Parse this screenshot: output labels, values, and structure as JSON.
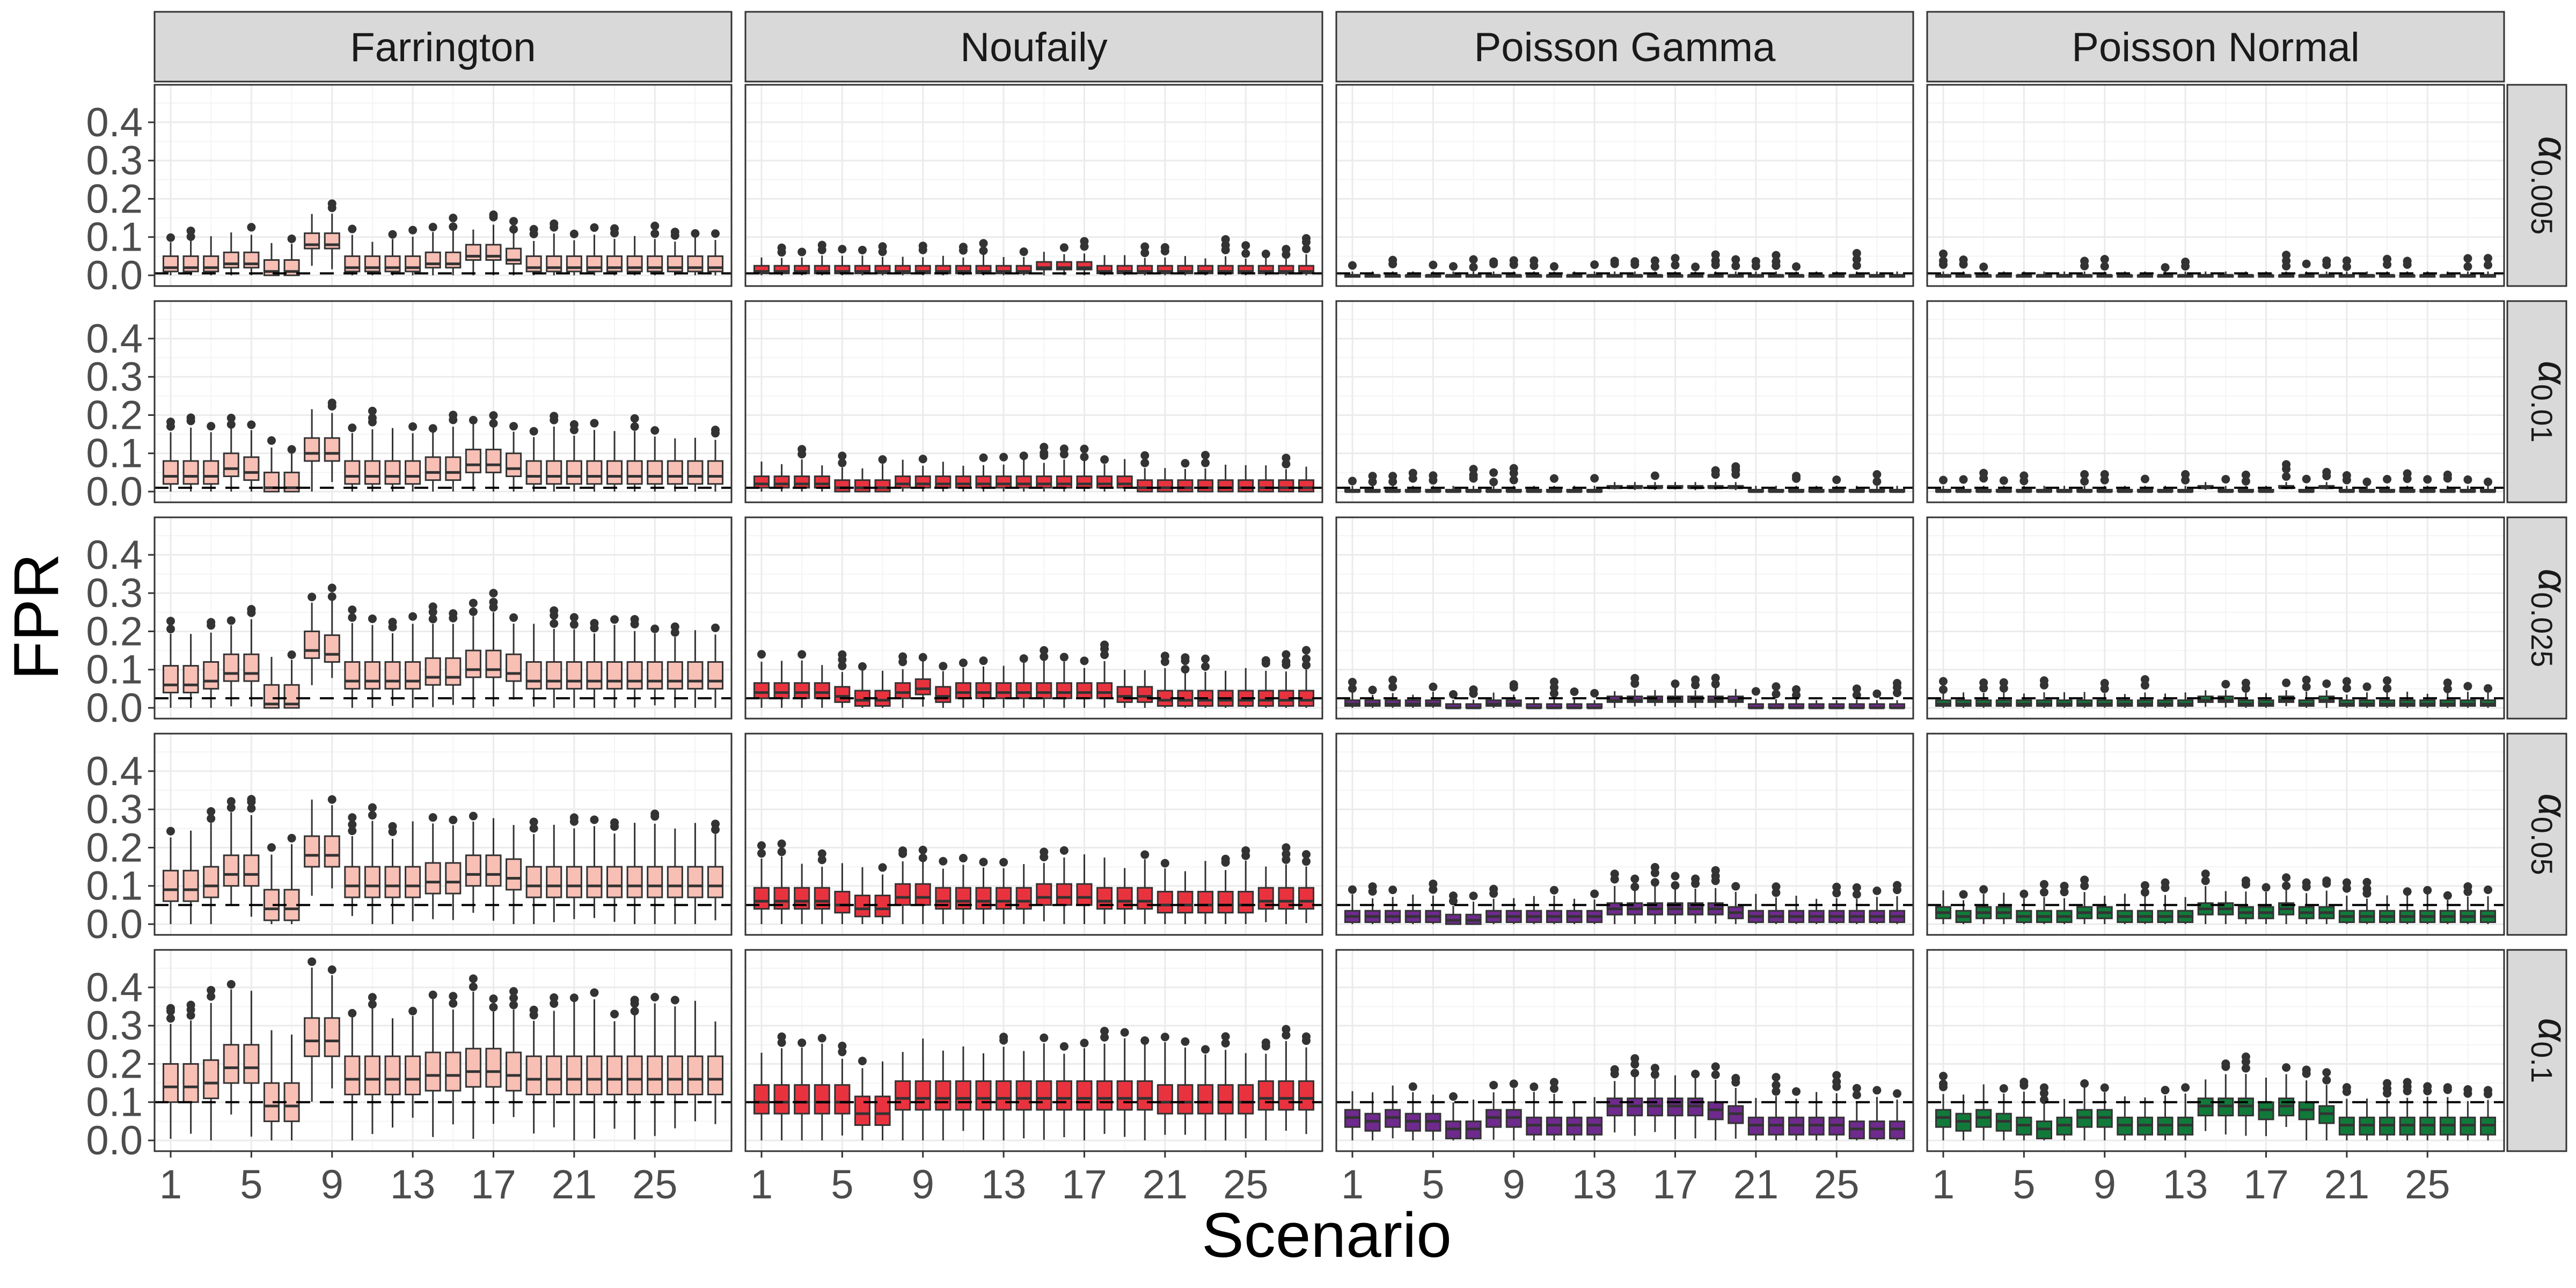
{
  "chart_data": {
    "type": "boxplot",
    "facet_columns": [
      "Farrington",
      "Noufaily",
      "Poisson Gamma",
      "Poisson Normal"
    ],
    "facet_row_symbol": "α",
    "facet_rows": [
      {
        "subscript": "0.005",
        "alpha": 0.005
      },
      {
        "subscript": "0.01",
        "alpha": 0.01
      },
      {
        "subscript": "0.025",
        "alpha": 0.025
      },
      {
        "subscript": "0.05",
        "alpha": 0.05
      },
      {
        "subscript": "0.1",
        "alpha": 0.1
      }
    ],
    "xlabel": "Scenario",
    "ylabel": "FPR",
    "x_range": [
      1,
      28
    ],
    "x_ticks": [
      "1",
      "5",
      "9",
      "13",
      "17",
      "21",
      "25"
    ],
    "y_ticks": [
      "0.0",
      "0.1",
      "0.2",
      "0.3",
      "0.4"
    ],
    "ylim": [
      0,
      0.47
    ],
    "reference_line": "dashed line at the nominal α level",
    "colors": {
      "Farrington": "#f8bfb5",
      "Noufaily": "#e8333f",
      "Poisson Gamma": "#6e2a8c",
      "Poisson Normal": "#117a3a"
    },
    "medians": {
      "Farrington": [
        [
          0.02,
          0.02,
          0.02,
          0.03,
          0.03,
          0.01,
          0.01,
          0.08,
          0.08,
          0.02,
          0.02,
          0.02,
          0.02,
          0.03,
          0.03,
          0.05,
          0.05,
          0.04,
          0.02,
          0.02,
          0.02,
          0.02,
          0.02,
          0.02,
          0.02,
          0.02,
          0.02,
          0.02
        ],
        [
          0.04,
          0.04,
          0.04,
          0.06,
          0.05,
          0.01,
          0.01,
          0.1,
          0.1,
          0.04,
          0.04,
          0.04,
          0.04,
          0.05,
          0.05,
          0.07,
          0.07,
          0.06,
          0.04,
          0.04,
          0.04,
          0.04,
          0.04,
          0.04,
          0.04,
          0.04,
          0.04,
          0.04
        ],
        [
          0.06,
          0.06,
          0.07,
          0.09,
          0.09,
          0.01,
          0.01,
          0.15,
          0.14,
          0.07,
          0.07,
          0.07,
          0.07,
          0.08,
          0.08,
          0.1,
          0.1,
          0.09,
          0.07,
          0.07,
          0.07,
          0.07,
          0.07,
          0.07,
          0.07,
          0.07,
          0.07,
          0.07
        ],
        [
          0.09,
          0.09,
          0.1,
          0.13,
          0.13,
          0.04,
          0.04,
          0.18,
          0.18,
          0.1,
          0.1,
          0.1,
          0.1,
          0.11,
          0.11,
          0.13,
          0.13,
          0.12,
          0.1,
          0.1,
          0.1,
          0.1,
          0.1,
          0.1,
          0.1,
          0.1,
          0.1,
          0.1
        ],
        [
          0.14,
          0.14,
          0.15,
          0.19,
          0.19,
          0.09,
          0.09,
          0.26,
          0.26,
          0.16,
          0.16,
          0.16,
          0.16,
          0.17,
          0.17,
          0.18,
          0.18,
          0.17,
          0.16,
          0.16,
          0.16,
          0.16,
          0.16,
          0.16,
          0.16,
          0.16,
          0.16,
          0.16
        ]
      ],
      "Noufaily": [
        [
          0.01,
          0.01,
          0.01,
          0.01,
          0.01,
          0.01,
          0.01,
          0.01,
          0.01,
          0.01,
          0.01,
          0.01,
          0.01,
          0.01,
          0.02,
          0.02,
          0.02,
          0.01,
          0.01,
          0.01,
          0.01,
          0.01,
          0.01,
          0.01,
          0.01,
          0.01,
          0.01,
          0.01
        ],
        [
          0.02,
          0.02,
          0.02,
          0.02,
          0.01,
          0.01,
          0.01,
          0.02,
          0.02,
          0.02,
          0.02,
          0.02,
          0.02,
          0.02,
          0.02,
          0.02,
          0.02,
          0.02,
          0.02,
          0.01,
          0.01,
          0.01,
          0.01,
          0.01,
          0.01,
          0.01,
          0.01,
          0.01
        ],
        [
          0.04,
          0.04,
          0.04,
          0.04,
          0.03,
          0.02,
          0.02,
          0.04,
          0.05,
          0.03,
          0.04,
          0.04,
          0.04,
          0.04,
          0.04,
          0.04,
          0.04,
          0.04,
          0.03,
          0.03,
          0.02,
          0.02,
          0.02,
          0.02,
          0.02,
          0.02,
          0.02,
          0.02
        ],
        [
          0.06,
          0.06,
          0.06,
          0.06,
          0.05,
          0.04,
          0.04,
          0.07,
          0.07,
          0.06,
          0.06,
          0.06,
          0.06,
          0.06,
          0.07,
          0.07,
          0.07,
          0.06,
          0.06,
          0.06,
          0.05,
          0.05,
          0.05,
          0.05,
          0.05,
          0.06,
          0.06,
          0.06
        ],
        [
          0.1,
          0.1,
          0.1,
          0.1,
          0.1,
          0.07,
          0.07,
          0.11,
          0.11,
          0.11,
          0.11,
          0.11,
          0.11,
          0.11,
          0.11,
          0.11,
          0.11,
          0.11,
          0.11,
          0.11,
          0.1,
          0.1,
          0.1,
          0.1,
          0.1,
          0.11,
          0.11,
          0.11
        ]
      ],
      "Poisson Gamma": [
        [
          0.0,
          0.0,
          0.0,
          0.0,
          0.0,
          0.0,
          0.0,
          0.0,
          0.0,
          0.0,
          0.0,
          0.0,
          0.0,
          0.0,
          0.0,
          0.0,
          0.0,
          0.0,
          0.0,
          0.0,
          0.0,
          0.0,
          0.0,
          0.0,
          0.0,
          0.0,
          0.0,
          0.0
        ],
        [
          0.0,
          0.0,
          0.0,
          0.0,
          0.0,
          0.0,
          0.0,
          0.0,
          0.0,
          0.0,
          0.0,
          0.0,
          0.0,
          0.01,
          0.01,
          0.01,
          0.01,
          0.01,
          0.01,
          0.01,
          0.0,
          0.0,
          0.0,
          0.0,
          0.0,
          0.0,
          0.0,
          0.0
        ],
        [
          0.01,
          0.01,
          0.01,
          0.01,
          0.01,
          0.0,
          0.0,
          0.01,
          0.01,
          0.0,
          0.0,
          0.0,
          0.0,
          0.02,
          0.02,
          0.02,
          0.02,
          0.02,
          0.02,
          0.02,
          0.0,
          0.0,
          0.0,
          0.0,
          0.0,
          0.0,
          0.0,
          0.0
        ],
        [
          0.02,
          0.02,
          0.02,
          0.02,
          0.02,
          0.01,
          0.01,
          0.02,
          0.02,
          0.02,
          0.02,
          0.02,
          0.02,
          0.04,
          0.04,
          0.04,
          0.04,
          0.04,
          0.04,
          0.03,
          0.02,
          0.02,
          0.02,
          0.02,
          0.02,
          0.02,
          0.02,
          0.02
        ],
        [
          0.06,
          0.05,
          0.06,
          0.05,
          0.05,
          0.03,
          0.03,
          0.06,
          0.06,
          0.04,
          0.04,
          0.04,
          0.04,
          0.09,
          0.09,
          0.09,
          0.09,
          0.09,
          0.08,
          0.07,
          0.04,
          0.04,
          0.04,
          0.04,
          0.04,
          0.03,
          0.03,
          0.03
        ]
      ],
      "Poisson Normal": [
        [
          0.0,
          0.0,
          0.0,
          0.0,
          0.0,
          0.0,
          0.0,
          0.0,
          0.0,
          0.0,
          0.0,
          0.0,
          0.0,
          0.0,
          0.0,
          0.0,
          0.0,
          0.0,
          0.0,
          0.0,
          0.0,
          0.0,
          0.0,
          0.0,
          0.0,
          0.0,
          0.0,
          0.0
        ],
        [
          0.0,
          0.0,
          0.0,
          0.0,
          0.0,
          0.0,
          0.0,
          0.0,
          0.0,
          0.0,
          0.0,
          0.0,
          0.0,
          0.01,
          0.0,
          0.0,
          0.0,
          0.01,
          0.0,
          0.01,
          0.0,
          0.0,
          0.0,
          0.0,
          0.0,
          0.0,
          0.0,
          0.0
        ],
        [
          0.01,
          0.01,
          0.01,
          0.01,
          0.01,
          0.01,
          0.01,
          0.01,
          0.01,
          0.01,
          0.01,
          0.01,
          0.01,
          0.02,
          0.02,
          0.01,
          0.01,
          0.02,
          0.01,
          0.02,
          0.01,
          0.01,
          0.01,
          0.01,
          0.01,
          0.01,
          0.01,
          0.01
        ],
        [
          0.03,
          0.02,
          0.03,
          0.03,
          0.02,
          0.02,
          0.02,
          0.03,
          0.03,
          0.02,
          0.02,
          0.02,
          0.02,
          0.04,
          0.04,
          0.03,
          0.03,
          0.04,
          0.03,
          0.03,
          0.02,
          0.02,
          0.02,
          0.02,
          0.02,
          0.02,
          0.02,
          0.02
        ],
        [
          0.06,
          0.05,
          0.06,
          0.05,
          0.04,
          0.03,
          0.04,
          0.06,
          0.06,
          0.04,
          0.04,
          0.04,
          0.04,
          0.09,
          0.09,
          0.09,
          0.08,
          0.09,
          0.08,
          0.07,
          0.04,
          0.04,
          0.04,
          0.04,
          0.04,
          0.04,
          0.04,
          0.04
        ]
      ]
    },
    "box_halfwidths": {
      "Farrington": [
        [
          0.01,
          0.03
        ],
        [
          0.02,
          0.04
        ],
        [
          0.02,
          0.05
        ],
        [
          0.03,
          0.05
        ],
        [
          0.04,
          0.06
        ]
      ],
      "Noufaily": [
        [
          0.005,
          0.015
        ],
        [
          0.01,
          0.02
        ],
        [
          0.015,
          0.025
        ],
        [
          0.02,
          0.035
        ],
        [
          0.03,
          0.045
        ]
      ],
      "Poisson Gamma": [
        [
          0,
          0
        ],
        [
          0,
          0.005
        ],
        [
          0.005,
          0.01
        ],
        [
          0.015,
          0.015
        ],
        [
          0.025,
          0.02
        ]
      ],
      "Poisson Normal": [
        [
          0,
          0
        ],
        [
          0,
          0.005
        ],
        [
          0.005,
          0.01
        ],
        [
          0.015,
          0.015
        ],
        [
          0.025,
          0.02
        ]
      ]
    }
  }
}
